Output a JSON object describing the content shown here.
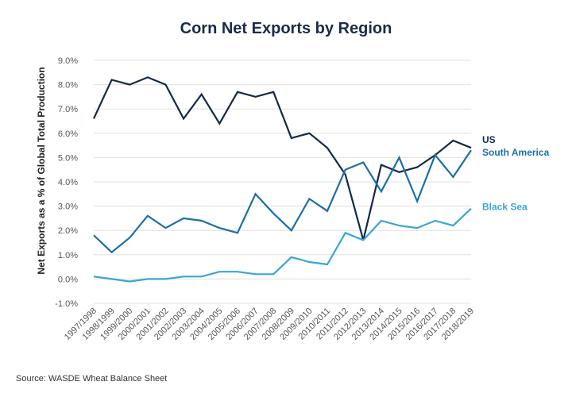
{
  "chart_data": {
    "type": "line",
    "title": "Corn Net Exports by Region",
    "ylabel": "Net Exports as a % of Global Total Production",
    "xlabel": "",
    "ylim": [
      -1.0,
      9.0
    ],
    "yticks": [
      "9.0%",
      "8.0%",
      "7.0%",
      "6.0%",
      "5.0%",
      "4.0%",
      "3.0%",
      "2.0%",
      "1.0%",
      "0.0%",
      "-1.0%"
    ],
    "ytick_values": [
      9,
      8,
      7,
      6,
      5,
      4,
      3,
      2,
      1,
      0,
      -1
    ],
    "grid": true,
    "categories": [
      "1997/1998",
      "1998/1999",
      "1999/2000",
      "2000/2001",
      "2001/2002",
      "2002/2003",
      "2003/2004",
      "2004/2005",
      "2005/2006",
      "2006/2007",
      "2007/2008",
      "2008/2009",
      "2009/2010",
      "2010/2011",
      "2011/2012",
      "2012/2013",
      "2013/2014",
      "2014/2015",
      "2015/2016",
      "2016/2017",
      "2017/2018",
      "2018/2019"
    ],
    "series": [
      {
        "name": "US",
        "color": "#14284b",
        "values": [
          6.6,
          8.2,
          8.0,
          8.3,
          8.0,
          6.6,
          7.6,
          6.4,
          7.7,
          7.5,
          7.7,
          5.8,
          6.0,
          5.4,
          4.3,
          1.6,
          4.7,
          4.4,
          4.6,
          5.1,
          5.7,
          5.4
        ]
      },
      {
        "name": "South America",
        "color": "#1d6fa5",
        "values": [
          1.8,
          1.1,
          1.7,
          2.6,
          2.1,
          2.5,
          2.4,
          2.1,
          1.9,
          3.5,
          2.7,
          2.0,
          3.3,
          2.8,
          4.5,
          4.8,
          3.6,
          5.0,
          3.2,
          5.1,
          4.2,
          5.3
        ]
      },
      {
        "name": "Black Sea",
        "color": "#3ba5d6",
        "values": [
          0.1,
          0.0,
          -0.1,
          0.0,
          0.0,
          0.1,
          0.1,
          0.3,
          0.3,
          0.2,
          0.2,
          0.9,
          0.7,
          0.6,
          1.9,
          1.6,
          2.4,
          2.2,
          2.1,
          2.4,
          2.2,
          2.9
        ]
      }
    ],
    "legend": "inline-right",
    "source": "Source: WASDE Wheat Balance Sheet"
  }
}
